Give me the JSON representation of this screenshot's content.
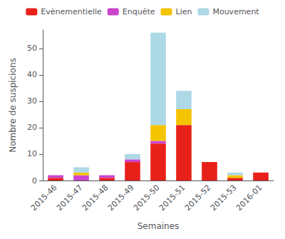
{
  "chart_data": {
    "type": "bar",
    "stacked": true,
    "categories": [
      "2015-46",
      "2015-47",
      "2015-48",
      "2015-49",
      "2015-50",
      "2015-51",
      "2015-52",
      "2015-53",
      "2016-01"
    ],
    "series": [
      {
        "name": "Evènementielle",
        "color": "#E8201A",
        "values": [
          1,
          0,
          1,
          7,
          14,
          21,
          7,
          1,
          3
        ]
      },
      {
        "name": "Enquête",
        "color": "#CC44CC",
        "values": [
          1,
          2,
          1,
          1,
          1,
          0,
          0,
          0,
          0
        ]
      },
      {
        "name": "Lien",
        "color": "#F5C400",
        "values": [
          0,
          1,
          0,
          0,
          6,
          6,
          0,
          1,
          0
        ]
      },
      {
        "name": "Mouvement",
        "color": "#ADD8E6",
        "values": [
          0,
          2,
          0,
          2,
          35,
          7,
          0,
          1,
          0
        ]
      }
    ],
    "xlabel": "Semaines",
    "ylabel": "Nombre de suspicions",
    "ylim": [
      0,
      57
    ],
    "yticks": [
      0,
      10,
      20,
      30,
      40,
      50
    ],
    "grid": false,
    "legend": "top"
  }
}
